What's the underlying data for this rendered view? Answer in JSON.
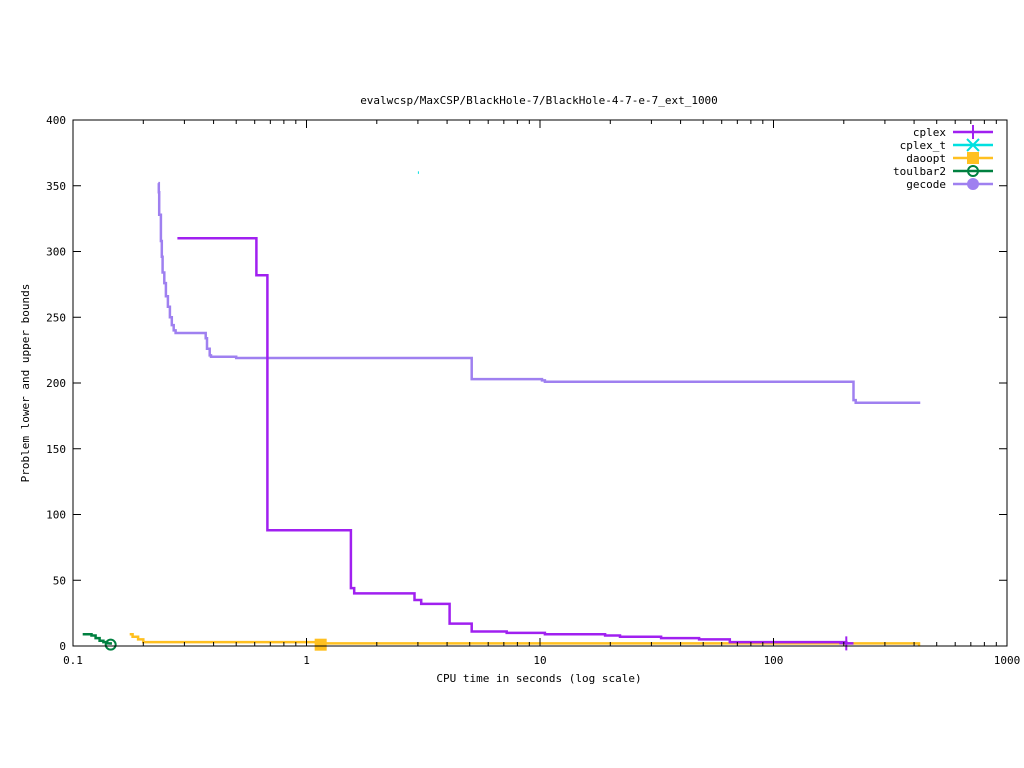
{
  "chart_data": {
    "type": "line",
    "title": "evalwcsp/MaxCSP/BlackHole-7/BlackHole-4-7-e-7_ext_1000",
    "xlabel": "CPU time in seconds (log scale)",
    "ylabel": "Problem lower and upper bounds",
    "xscale": "log",
    "xlim": [
      0.1,
      1000
    ],
    "ylim": [
      0,
      400
    ],
    "x_ticks": [
      {
        "value": 0.1,
        "label": "0.1"
      },
      {
        "value": 1,
        "label": "1"
      },
      {
        "value": 10,
        "label": "10"
      },
      {
        "value": 100,
        "label": "100"
      },
      {
        "value": 1000,
        "label": "1000"
      }
    ],
    "y_ticks": [
      {
        "value": 0,
        "label": "0"
      },
      {
        "value": 50,
        "label": "50"
      },
      {
        "value": 100,
        "label": "100"
      },
      {
        "value": 150,
        "label": "150"
      },
      {
        "value": 200,
        "label": "200"
      },
      {
        "value": 250,
        "label": "250"
      },
      {
        "value": 300,
        "label": "300"
      },
      {
        "value": 350,
        "label": "350"
      },
      {
        "value": 400,
        "label": "400"
      }
    ],
    "legend_position": "top-right",
    "grid": false,
    "series": [
      {
        "name": "cplex",
        "color": "#a020f0",
        "marker": "plus",
        "step": true,
        "points": [
          [
            0.28,
            310
          ],
          [
            0.61,
            282
          ],
          [
            0.68,
            88
          ],
          [
            1.55,
            44
          ],
          [
            1.6,
            40
          ],
          [
            2.9,
            35
          ],
          [
            3.1,
            32
          ],
          [
            4.1,
            17
          ],
          [
            5.1,
            11
          ],
          [
            7.2,
            10
          ],
          [
            10.5,
            9
          ],
          [
            19,
            8
          ],
          [
            22,
            7
          ],
          [
            33,
            6
          ],
          [
            48,
            5
          ],
          [
            65,
            3
          ],
          [
            205,
            2
          ],
          [
            220,
            2
          ]
        ],
        "marker_points": [
          [
            205,
            2
          ]
        ]
      },
      {
        "name": "cplex_t",
        "color": "#00e0e0",
        "marker": "x",
        "step": false,
        "points": [
          [
            3.0,
            360
          ],
          [
            3.03,
            360
          ]
        ],
        "marker_points": []
      },
      {
        "name": "daoopt",
        "color": "#ffc020",
        "marker": "square",
        "step": true,
        "points": [
          [
            0.175,
            9
          ],
          [
            0.18,
            7
          ],
          [
            0.19,
            5
          ],
          [
            0.2,
            3
          ],
          [
            1.1,
            2
          ],
          [
            420,
            0
          ]
        ],
        "marker_points": [
          [
            1.15,
            1
          ]
        ]
      },
      {
        "name": "toulbar2",
        "color": "#008040",
        "marker": "circle",
        "step": true,
        "points": [
          [
            0.11,
            9
          ],
          [
            0.12,
            8
          ],
          [
            0.125,
            6
          ],
          [
            0.13,
            4
          ],
          [
            0.135,
            3
          ],
          [
            0.14,
            2
          ],
          [
            0.145,
            1
          ]
        ],
        "marker_points": [
          [
            0.145,
            1
          ]
        ]
      },
      {
        "name": "gecode",
        "color": "#9f80f0",
        "marker": "filled-circle",
        "step": true,
        "points": [
          [
            0.232,
            352
          ],
          [
            0.233,
            345
          ],
          [
            0.234,
            328
          ],
          [
            0.238,
            308
          ],
          [
            0.24,
            296
          ],
          [
            0.242,
            284
          ],
          [
            0.246,
            276
          ],
          [
            0.25,
            266
          ],
          [
            0.255,
            258
          ],
          [
            0.26,
            250
          ],
          [
            0.265,
            244
          ],
          [
            0.27,
            240
          ],
          [
            0.275,
            238
          ],
          [
            0.37,
            234
          ],
          [
            0.375,
            226
          ],
          [
            0.385,
            221
          ],
          [
            0.39,
            220
          ],
          [
            0.5,
            219
          ],
          [
            5.1,
            203
          ],
          [
            10.2,
            202
          ],
          [
            10.5,
            201
          ],
          [
            215,
            201
          ],
          [
            220,
            187
          ],
          [
            225,
            185
          ],
          [
            420,
            184
          ]
        ],
        "marker_points": []
      }
    ]
  }
}
